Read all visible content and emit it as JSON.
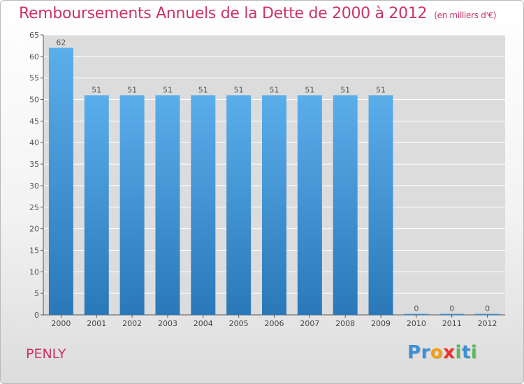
{
  "header": {
    "title": "Remboursements Annuels de la Dette de 2000 à 2012",
    "unit": "(en milliers d'€)"
  },
  "footer": {
    "commune": "PENLY",
    "logo_letters": [
      {
        "ch": "P",
        "color": "#3b8fd6"
      },
      {
        "ch": "r",
        "color": "#3b8fd6"
      },
      {
        "ch": "o",
        "color": "#f39c12"
      },
      {
        "ch": "x",
        "color": "#e8312a"
      },
      {
        "ch": "i",
        "color": "#5cb85c"
      },
      {
        "ch": "t",
        "color": "#3b8fd6"
      },
      {
        "ch": "i",
        "color": "#5cb85c"
      }
    ]
  },
  "chart_data": {
    "type": "bar",
    "title": "Remboursements Annuels de la Dette de 2000 à 2012",
    "subtitle": "(en milliers d'€)",
    "categories": [
      "2000",
      "2001",
      "2002",
      "2003",
      "2004",
      "2005",
      "2006",
      "2007",
      "2008",
      "2009",
      "2010",
      "2011",
      "2012"
    ],
    "values": [
      62,
      51,
      51,
      51,
      51,
      51,
      51,
      51,
      51,
      51,
      0,
      0,
      0
    ],
    "ylim": [
      0,
      65
    ],
    "yticks": [
      0,
      5,
      10,
      15,
      20,
      25,
      30,
      35,
      40,
      45,
      50,
      55,
      60,
      65
    ],
    "grid": true,
    "colors": {
      "bar_top": "#5aaeea",
      "bar_bottom": "#2a78b8",
      "label": "#555555",
      "grid": "#ffffff",
      "plot_bg": "#dcdcdc"
    }
  }
}
